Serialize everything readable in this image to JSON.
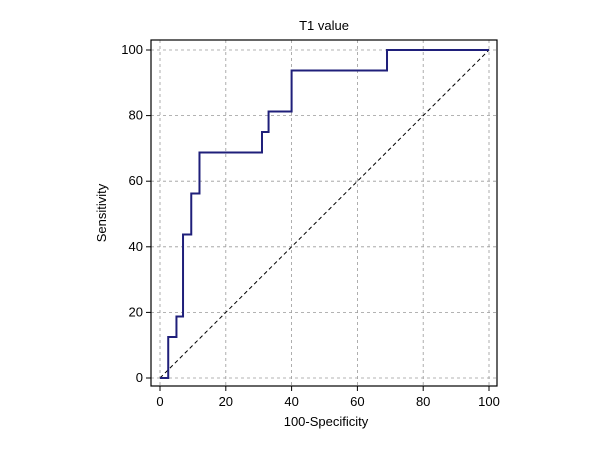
{
  "chart_data": {
    "type": "line",
    "title": "T1 value",
    "xlabel": "100-Specificity",
    "ylabel": "Sensitivity",
    "xlim": [
      0,
      100
    ],
    "ylim": [
      0,
      100
    ],
    "x_ticks": [
      "0",
      "20",
      "40",
      "60",
      "80",
      "100"
    ],
    "y_ticks": [
      "0",
      "20",
      "40",
      "60",
      "80",
      "100"
    ],
    "grid": true,
    "legend": "none",
    "series": [
      {
        "color": "#1f1f7a",
        "style": "step",
        "points": [
          [
            0,
            0
          ],
          [
            2.5,
            0
          ],
          [
            2.5,
            12.5
          ],
          [
            5,
            12.5
          ],
          [
            5,
            18.75
          ],
          [
            7,
            18.75
          ],
          [
            7,
            43.75
          ],
          [
            9.5,
            43.75
          ],
          [
            9.5,
            56.25
          ],
          [
            12,
            56.25
          ],
          [
            12,
            68.75
          ],
          [
            31,
            68.75
          ],
          [
            31,
            75
          ],
          [
            33,
            75
          ],
          [
            33,
            81.25
          ],
          [
            40,
            81.25
          ],
          [
            40,
            93.75
          ],
          [
            69,
            93.75
          ],
          [
            69,
            100
          ],
          [
            100,
            100
          ]
        ]
      }
    ],
    "reference_line": {
      "style": "dashed",
      "color": "#000000",
      "points": [
        [
          0,
          0
        ],
        [
          100,
          100
        ]
      ]
    }
  }
}
